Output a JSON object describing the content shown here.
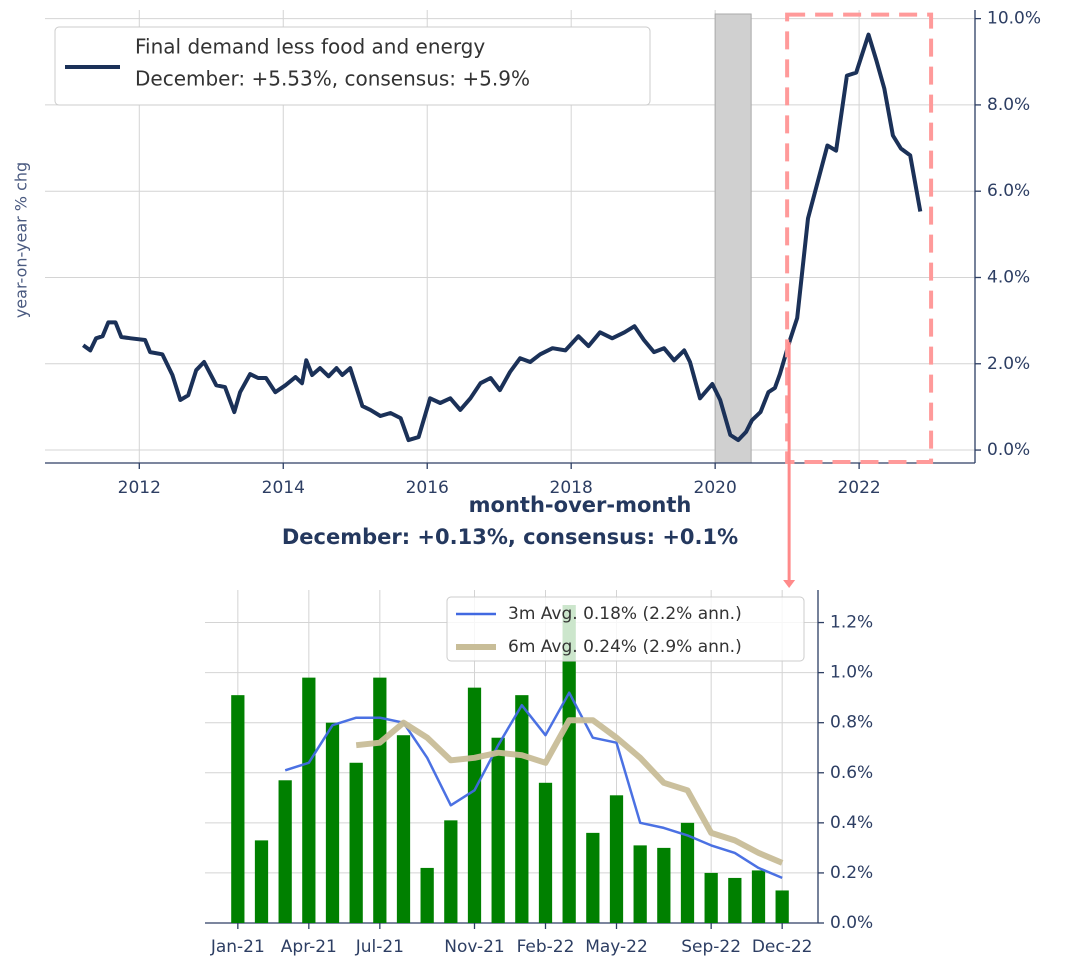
{
  "chart_data": [
    {
      "type": "line",
      "ylabel": "year-on-year % chg",
      "x": [
        2011.22,
        2011.32,
        2011.4,
        2011.49,
        2011.57,
        2011.67,
        2011.75,
        2011.88,
        2012.08,
        2012.15,
        2012.32,
        2012.46,
        2012.57,
        2012.68,
        2012.79,
        2012.9,
        2013.07,
        2013.19,
        2013.32,
        2013.4,
        2013.54,
        2013.65,
        2013.76,
        2013.89,
        2014.03,
        2014.17,
        2014.26,
        2014.32,
        2014.4,
        2014.51,
        2014.63,
        2014.74,
        2014.82,
        2014.93,
        2015.1,
        2015.21,
        2015.35,
        2015.49,
        2015.63,
        2015.74,
        2015.88,
        2016.04,
        2016.18,
        2016.32,
        2016.46,
        2016.6,
        2016.74,
        2016.88,
        2017.01,
        2017.15,
        2017.29,
        2017.43,
        2017.57,
        2017.74,
        2017.92,
        2018.1,
        2018.24,
        2018.4,
        2018.57,
        2018.74,
        2018.88,
        2019.01,
        2019.15,
        2019.29,
        2019.43,
        2019.57,
        2019.65,
        2019.79,
        2019.96,
        2020.07,
        2020.21,
        2020.32,
        2020.43,
        2020.51,
        2020.63,
        2020.74,
        2020.83,
        2020.9,
        2021.04,
        2021.14,
        2021.29,
        2021.43,
        2021.56,
        2021.68,
        2021.83,
        2021.96,
        2022.13,
        2022.24,
        2022.35,
        2022.47,
        2022.58,
        2022.71,
        2022.85
      ],
      "series": [
        {
          "name": "Final demand less food and energy",
          "note": "December:  +5.53%, consensus: +5.9%",
          "color": "#1b3158",
          "values": [
            2.43,
            2.31,
            2.59,
            2.64,
            2.96,
            2.96,
            2.62,
            2.59,
            2.55,
            2.27,
            2.22,
            1.74,
            1.16,
            1.27,
            1.85,
            2.04,
            1.5,
            1.46,
            0.88,
            1.34,
            1.76,
            1.67,
            1.67,
            1.34,
            1.5,
            1.69,
            1.55,
            2.08,
            1.74,
            1.9,
            1.71,
            1.9,
            1.74,
            1.9,
            1.02,
            0.93,
            0.79,
            0.86,
            0.74,
            0.23,
            0.3,
            1.2,
            1.09,
            1.2,
            0.93,
            1.2,
            1.55,
            1.67,
            1.39,
            1.81,
            2.13,
            2.04,
            2.22,
            2.36,
            2.31,
            2.64,
            2.41,
            2.73,
            2.59,
            2.73,
            2.87,
            2.55,
            2.27,
            2.36,
            2.08,
            2.31,
            2.04,
            1.2,
            1.53,
            1.16,
            0.35,
            0.23,
            0.42,
            0.69,
            0.88,
            1.34,
            1.44,
            1.76,
            2.55,
            3.06,
            5.37,
            6.25,
            7.06,
            6.94,
            8.68,
            8.75,
            9.63,
            9.03,
            8.38,
            7.29,
            6.99,
            6.83,
            5.53
          ]
        }
      ],
      "recession": [
        2020.0,
        2020.5
      ],
      "highlight": {
        "x": [
          2021.0,
          2023.0
        ],
        "y": [
          0,
          10
        ]
      },
      "xlim": [
        2010.69,
        2023.61
      ],
      "xticks": [
        2012,
        2014,
        2016,
        2018,
        2020,
        2022
      ],
      "ylim": [
        -0.3,
        10.2
      ],
      "yticks": [
        {
          "value": 0,
          "label": "0.0%"
        },
        {
          "value": 2,
          "label": "2.0%"
        },
        {
          "value": 4,
          "label": "4.0%"
        },
        {
          "value": 6,
          "label": "6.0%"
        },
        {
          "value": 8,
          "label": "8.0%"
        },
        {
          "value": 10,
          "label": "10.0%"
        }
      ],
      "grid": true
    },
    {
      "type": "bar",
      "title": "month-over-month",
      "subtitle": "December:  +0.13%, consensus: +0.1%",
      "categories": [
        "Jan-21",
        null,
        null,
        "Apr-21",
        null,
        null,
        "Jul-21",
        null,
        null,
        null,
        "Nov-21",
        null,
        null,
        "Feb-22",
        null,
        null,
        "May-22",
        null,
        null,
        null,
        "Sep-22",
        null,
        null,
        "Dec-22"
      ],
      "values": [
        0.91,
        0.33,
        0.57,
        0.98,
        0.8,
        0.64,
        0.98,
        0.75,
        0.22,
        0.41,
        0.94,
        0.74,
        0.91,
        0.56,
        1.27,
        0.36,
        0.51,
        0.31,
        0.3,
        0.4,
        0.2,
        0.18,
        0.21,
        0.13
      ],
      "color": "#008000",
      "series": [
        {
          "name": "3m Avg. 0.18% (2.2% ann.)",
          "color": "#4169e1",
          "width": 2.5,
          "values": [
            null,
            null,
            0.61,
            0.64,
            0.79,
            0.82,
            0.82,
            0.8,
            0.66,
            0.47,
            0.53,
            0.71,
            0.87,
            0.75,
            0.92,
            0.74,
            0.72,
            0.4,
            0.38,
            0.35,
            0.31,
            0.28,
            0.22,
            0.18
          ]
        },
        {
          "name": "6m Avg. 0.24% (2.9% ann.)",
          "color": "#c8bd98",
          "width": 6,
          "values": [
            null,
            null,
            null,
            null,
            null,
            0.71,
            0.72,
            0.8,
            0.74,
            0.65,
            0.66,
            0.68,
            0.67,
            0.64,
            0.81,
            0.81,
            0.74,
            0.66,
            0.56,
            0.53,
            0.36,
            0.33,
            0.28,
            0.24
          ]
        }
      ],
      "ylim": [
        0,
        1.33
      ],
      "yticks": [
        {
          "value": 0,
          "label": "0.0%"
        },
        {
          "value": 0.2,
          "label": "0.2%"
        },
        {
          "value": 0.4,
          "label": "0.4%"
        },
        {
          "value": 0.6,
          "label": "0.6%"
        },
        {
          "value": 0.8,
          "label": "0.8%"
        },
        {
          "value": 1.0,
          "label": "1.0%"
        },
        {
          "value": 1.2,
          "label": "1.2%"
        }
      ],
      "grid": true
    }
  ]
}
